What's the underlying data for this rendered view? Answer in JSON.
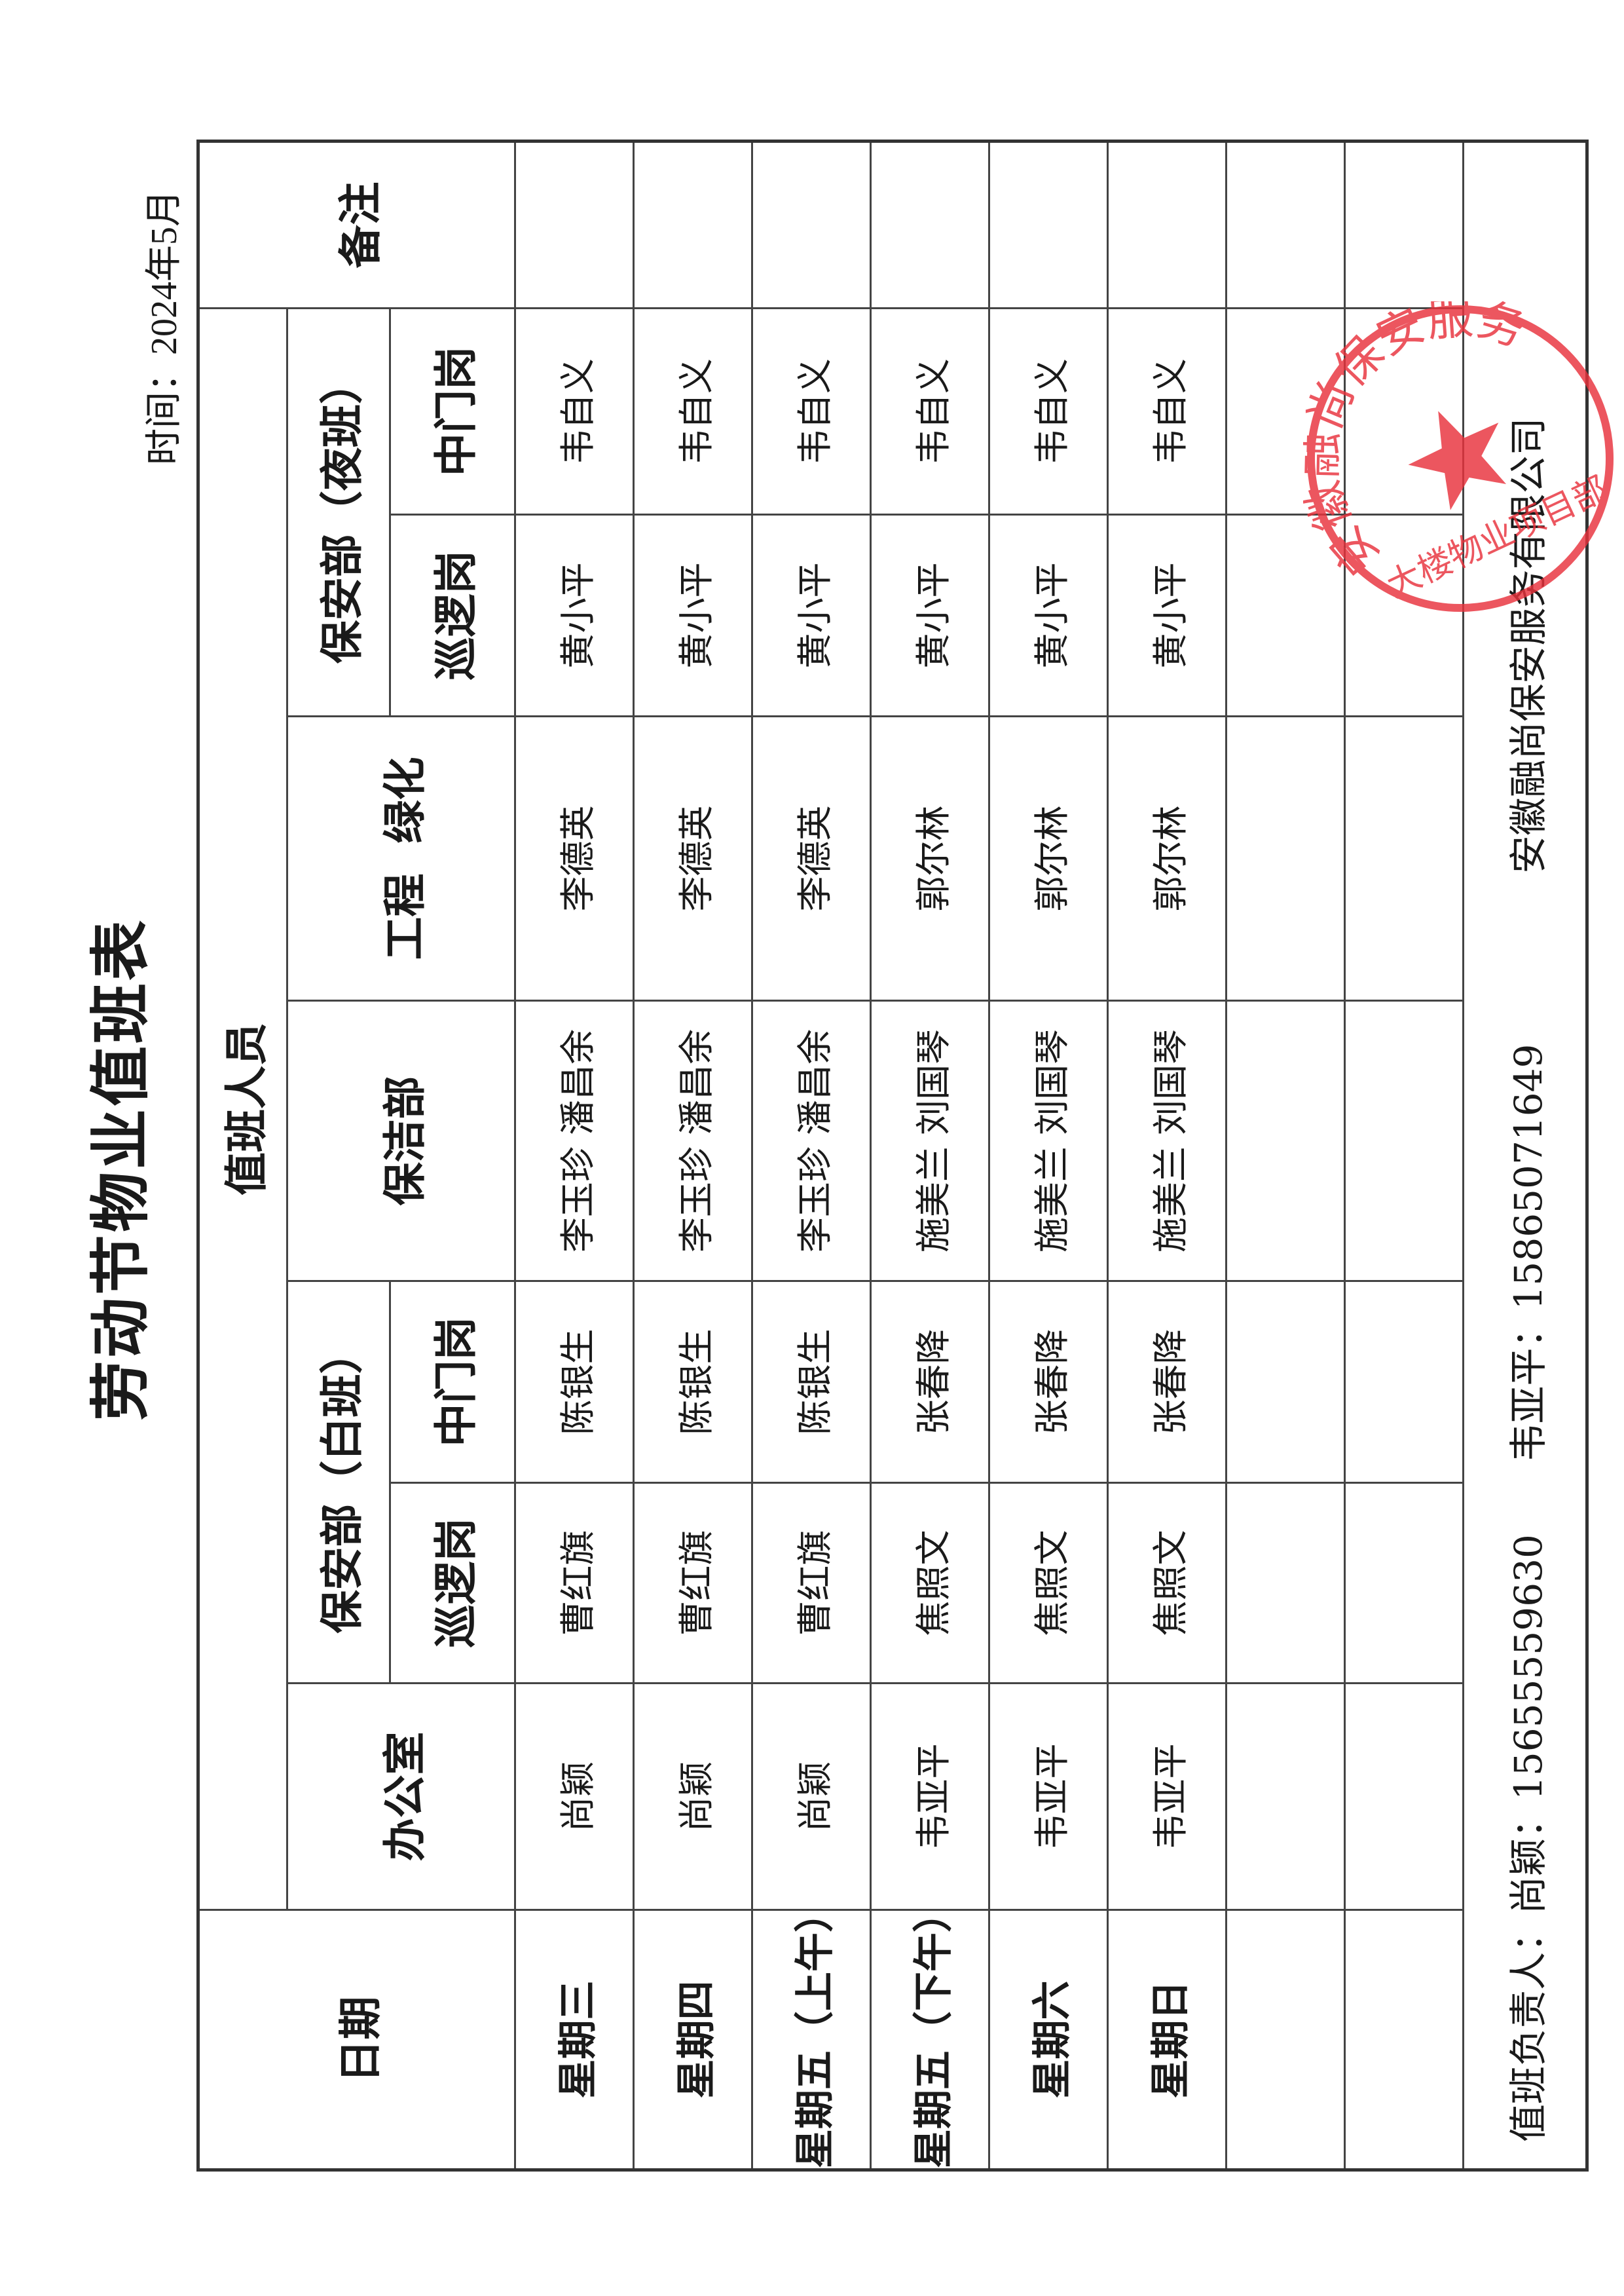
{
  "title": "劳动节物业值班表",
  "time": "时间：2024年5月",
  "headers": {
    "date": "日期",
    "staff": "值班人员",
    "office": "办公室",
    "security_day": "保安部（白班）",
    "cleaning": "保洁部",
    "engineering": "工程  绿化",
    "security_night": "保安部（夜班）",
    "patrol": "巡逻岗",
    "gate": "中门岗",
    "remarks": "备注"
  },
  "rows": [
    [
      "星期三",
      "尚颖",
      "曹红旗",
      "陈银生",
      "李玉珍  潘昌余",
      "李德英",
      "黄小平",
      "韦自义",
      ""
    ],
    [
      "星期四",
      "尚颖",
      "曹红旗",
      "陈银生",
      "李玉珍  潘昌余",
      "李德英",
      "黄小平",
      "韦自义",
      ""
    ],
    [
      "星期五（上午）",
      "尚颖",
      "曹红旗",
      "陈银生",
      "李玉珍  潘昌余",
      "李德英",
      "黄小平",
      "韦自义",
      ""
    ],
    [
      "星期五（下午）",
      "韦亚平",
      "焦照文",
      "张春降",
      "施美兰  刘国琴",
      "郭尔林",
      "黄小平",
      "韦自义",
      ""
    ],
    [
      "星期六",
      "韦亚平",
      "焦照文",
      "张春降",
      "施美兰  刘国琴",
      "郭尔林",
      "黄小平",
      "韦自义",
      ""
    ],
    [
      "星期日",
      "韦亚平",
      "焦照文",
      "张春降",
      "施美兰  刘国琴",
      "郭尔林",
      "黄小平",
      "韦自义",
      ""
    ],
    [
      "",
      "",
      "",
      "",
      "",
      "",
      "",
      "",
      ""
    ],
    [
      "",
      "",
      "",
      "",
      "",
      "",
      "",
      "",
      ""
    ]
  ],
  "footer": {
    "responsible": "值班负责人：尚颖：15655559630      韦亚平：15865071649",
    "company": "安徽融尚保安服务有限公司"
  },
  "stamp": {
    "outer_text": "安徽融尚保安服务有限公司",
    "inner_text": "大楼物业项目部",
    "color": "#e8323c"
  }
}
